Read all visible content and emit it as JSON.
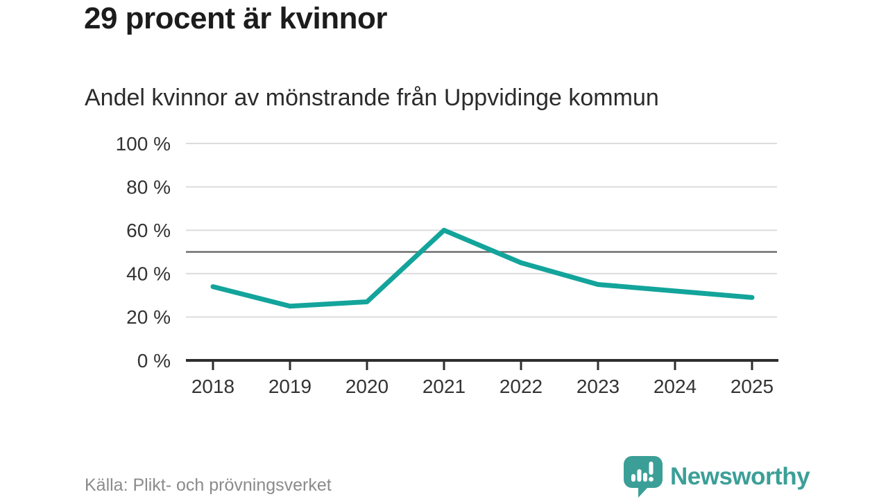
{
  "header": {
    "title": "29 procent är kvinnor",
    "subtitle": "Andel kvinnor av mönstrande från Uppvidinge kommun"
  },
  "chart_data": {
    "type": "line",
    "title": "Andel kvinnor av mönstrande från Uppvidinge kommun",
    "categories": [
      "2018",
      "2019",
      "2020",
      "2021",
      "2022",
      "2023",
      "2024",
      "2025"
    ],
    "values": [
      34,
      25,
      27,
      60,
      45,
      35,
      32,
      29
    ],
    "unit": "%",
    "xlabel": "",
    "ylabel": "",
    "ylim": [
      0,
      100
    ],
    "ytick_values": [
      0,
      20,
      40,
      60,
      80,
      100
    ],
    "ytick_labels": [
      "0 %",
      "20 %",
      "40 %",
      "60 %",
      "80 %",
      "100 %"
    ],
    "reference_line_value": 50,
    "grid": true,
    "legend": false,
    "colors": {
      "line": "#13a49b",
      "grid": "#dcdcdc",
      "reference_line": "#6e6e6e",
      "axis": "#2e2e2e",
      "tick_label": "#333333"
    }
  },
  "footer": {
    "source": "Källa: Plikt- och prövningsverket",
    "brand": "Newsworthy",
    "brand_color": "#3b9f97"
  }
}
